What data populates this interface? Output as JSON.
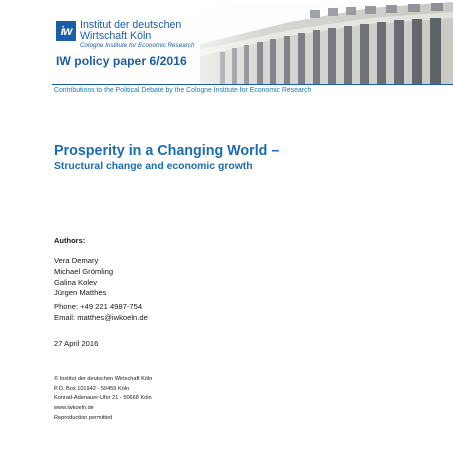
{
  "header": {
    "logo_mark": "iw",
    "logo_line1": "Institut der deutschen",
    "logo_line2": "Wirtschaft Köln",
    "logo_line3": "Cologne Institute for Economic Research",
    "paper_number": "IW policy paper 6/2016",
    "contributions": "Contributions to the Political Debate by the Cologne Institute for Economic Research"
  },
  "title": {
    "main": "Prosperity in a Changing World –",
    "sub": "Structural change and economic growth"
  },
  "authors": {
    "label": "Authors:",
    "names": [
      "Vera Demary",
      "Michael Grömling",
      "Galina Kolev",
      "Jürgen Matthes"
    ]
  },
  "contact": {
    "phone": "Phone: +49 221 4987-754",
    "email": "Email: matthes@iwkoeln.de"
  },
  "date": "27 April 2016",
  "imprint": {
    "lines": [
      "© Institut der deutschen Wirtschaft Köln",
      "P.O. Box 101942 - 50459 Köln",
      "Konrad-Adenauer-Ufer 21 - 50668 Köln",
      "www.iwkoeln.de",
      "Reproduction permitted"
    ]
  },
  "colors": {
    "brand_blue": "#1b5ea8",
    "title_blue": "#1b6db0"
  },
  "icons": {
    "logo": "iw-logo-icon",
    "header_photo": "building-photo"
  }
}
